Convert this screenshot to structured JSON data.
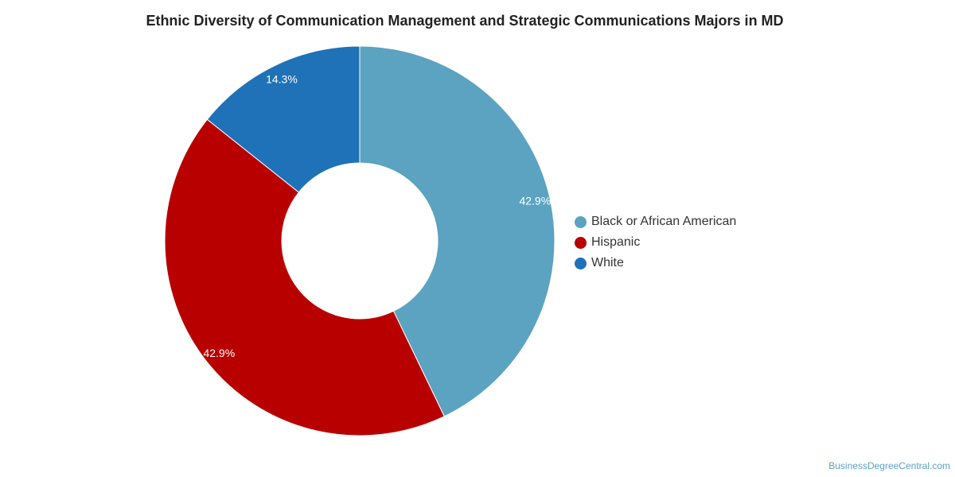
{
  "chart_data": {
    "type": "pie",
    "title": "Ethnic Diversity of Communication Management and Strategic Communications Majors in MD",
    "categories": [
      "Black or African American",
      "Hispanic",
      "White"
    ],
    "values": [
      42.9,
      42.9,
      14.3
    ],
    "value_labels": [
      "42.9%",
      "42.9%",
      "14.3%"
    ],
    "colors": [
      "#5ba3c0",
      "#b80000",
      "#1f72b8"
    ],
    "donut": true,
    "legend_position": "right"
  },
  "watermark": "BusinessDegreeCentral.com"
}
